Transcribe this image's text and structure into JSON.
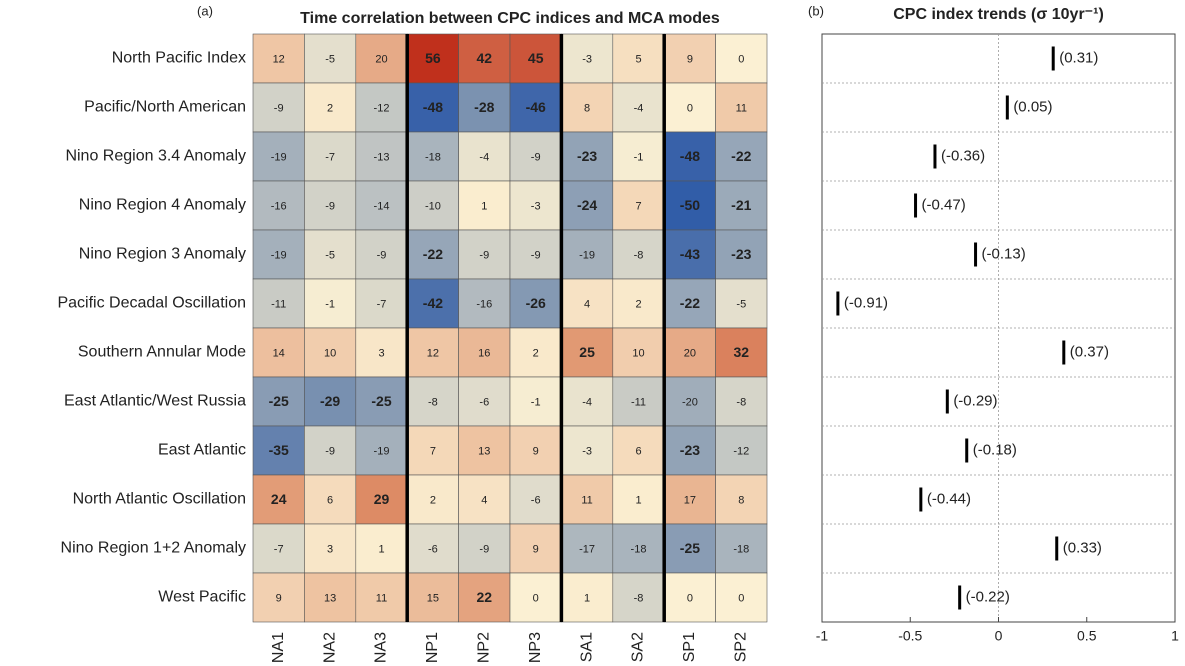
{
  "chart_data": [
    {
      "type": "heatmap",
      "panel_label": "(a)",
      "title": "Time correlation between CPC indices and MCA modes",
      "rows": [
        "North Pacific Index",
        "Pacific/North American",
        "Nino Region 3.4 Anomaly",
        "Nino Region 4 Anomaly",
        "Nino Region 3 Anomaly",
        "Pacific Decadal Oscillation",
        "Southern Annular Mode",
        "East Atlantic/West Russia",
        "East Atlantic",
        "North Atlantic Oscillation",
        "Nino Region 1+2 Anomaly",
        "West Pacific"
      ],
      "columns": [
        "NA1",
        "NA2",
        "NA3",
        "NP1",
        "NP2",
        "NP3",
        "SA1",
        "SA2",
        "SP1",
        "SP2"
      ],
      "values": [
        [
          12,
          -5,
          20,
          56,
          42,
          45,
          -3,
          5,
          9,
          0
        ],
        [
          -9,
          2,
          -12,
          -48,
          -28,
          -46,
          8,
          -4,
          0,
          11
        ],
        [
          -19,
          -7,
          -13,
          -18,
          -4,
          -9,
          -23,
          -1,
          -48,
          -22
        ],
        [
          -16,
          -9,
          -14,
          -10,
          1,
          -3,
          -24,
          7,
          -50,
          -21
        ],
        [
          -19,
          -5,
          -9,
          -22,
          -9,
          -9,
          -19,
          -8,
          -43,
          -23
        ],
        [
          -11,
          -1,
          -7,
          -42,
          -16,
          -26,
          4,
          2,
          -22,
          -5
        ],
        [
          14,
          10,
          3,
          12,
          16,
          2,
          25,
          10,
          20,
          32
        ],
        [
          -25,
          -29,
          -25,
          -8,
          -6,
          -1,
          -4,
          -11,
          -20,
          -8
        ],
        [
          -35,
          -9,
          -19,
          7,
          13,
          9,
          -3,
          6,
          -23,
          -12
        ],
        [
          24,
          6,
          29,
          2,
          4,
          -6,
          11,
          1,
          17,
          8
        ],
        [
          -7,
          3,
          1,
          -6,
          -9,
          9,
          -17,
          -18,
          -25,
          -18
        ],
        [
          9,
          13,
          11,
          15,
          22,
          0,
          1,
          -8,
          0,
          0
        ]
      ],
      "significant": [
        [
          false,
          false,
          false,
          true,
          true,
          true,
          false,
          false,
          false,
          false
        ],
        [
          false,
          false,
          false,
          true,
          true,
          true,
          false,
          false,
          false,
          false
        ],
        [
          false,
          false,
          false,
          false,
          false,
          false,
          true,
          false,
          true,
          true
        ],
        [
          false,
          false,
          false,
          false,
          false,
          false,
          true,
          false,
          true,
          true
        ],
        [
          false,
          false,
          false,
          true,
          false,
          false,
          false,
          false,
          true,
          true
        ],
        [
          false,
          false,
          false,
          true,
          false,
          true,
          false,
          false,
          true,
          false
        ],
        [
          false,
          false,
          false,
          false,
          false,
          false,
          true,
          false,
          false,
          true
        ],
        [
          true,
          true,
          true,
          false,
          false,
          false,
          false,
          false,
          false,
          false
        ],
        [
          true,
          false,
          false,
          false,
          false,
          false,
          false,
          false,
          true,
          false
        ],
        [
          true,
          false,
          true,
          false,
          false,
          false,
          false,
          false,
          false,
          false
        ],
        [
          false,
          false,
          false,
          false,
          false,
          false,
          false,
          false,
          true,
          false
        ],
        [
          false,
          false,
          false,
          false,
          true,
          false,
          false,
          false,
          false,
          false
        ]
      ],
      "clim": [
        -56,
        56
      ],
      "colormap": [
        "#1d4ea6",
        "#7b92b0",
        "#fbf0d3",
        "#de8e68",
        "#c0301c"
      ]
    },
    {
      "type": "dot",
      "panel_label": "(b)",
      "title": "CPC index trends (σ 10yr⁻¹)",
      "values": [
        0.31,
        0.05,
        -0.36,
        -0.47,
        -0.13,
        -0.91,
        0.37,
        -0.29,
        -0.18,
        -0.44,
        0.33,
        -0.22
      ],
      "value_labels": [
        "(0.31)",
        "(0.05)",
        "(-0.36)",
        "(-0.47)",
        "(-0.13)",
        "(-0.91)",
        "(0.37)",
        "(-0.29)",
        "(-0.18)",
        "(-0.44)",
        "(0.33)",
        "(-0.22)"
      ],
      "xlim": [
        -1,
        1
      ],
      "xticks": [
        -1,
        -0.5,
        0,
        0.5,
        1
      ],
      "grid": true,
      "color": "#000000"
    }
  ]
}
